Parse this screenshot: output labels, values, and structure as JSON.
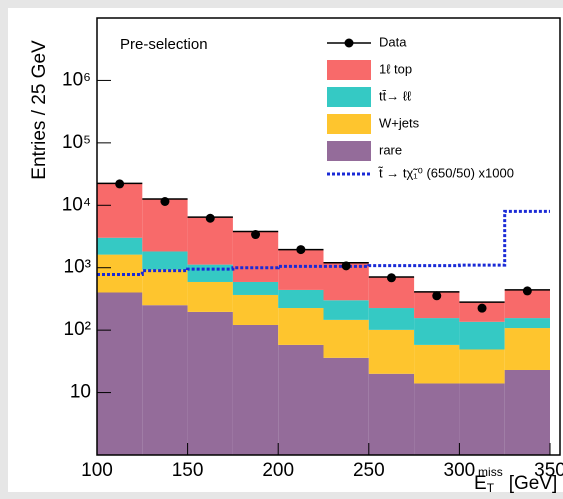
{
  "chart_data": {
    "type": "stacked_histogram",
    "annotation": "Pre-selection",
    "y_label": "Entries / 25 GeV",
    "x_label_parts": [
      "E",
      "T",
      "miss",
      "[GeV]"
    ],
    "bins": [
      100,
      125,
      150,
      175,
      200,
      225,
      250,
      275,
      300,
      325,
      350
    ],
    "series": [
      {
        "name": "1ℓ top",
        "color": "#f86a6a",
        "values": [
          19380,
          10780,
          5330,
          3210,
          1510,
          900,
          485,
          255,
          145,
          285
        ]
      },
      {
        "name": "tt̄→ ℓℓ",
        "color": "#35c9c4",
        "values": [
          1400,
          890,
          530,
          225,
          215,
          155,
          125,
          98,
          87,
          48
        ]
      },
      {
        "name": "W+jets",
        "color": "#fec52e",
        "values": [
          1220,
          680,
          395,
          245,
          168,
          110,
          81,
          44,
          35,
          85
        ]
      },
      {
        "name": "rare",
        "color": "#946c9a",
        "values": [
          400,
          250,
          195,
          120,
          57,
          35,
          19,
          13,
          13,
          22
        ]
      }
    ],
    "data_points": {
      "name": "Data",
      "color": "#000000",
      "values": [
        22000,
        11500,
        6200,
        3400,
        1950,
        1070,
        690,
        355,
        225,
        425
      ]
    },
    "signal": {
      "name": "t̃ → tχ̃₁⁰ (650/50) x1000",
      "color": "#1a2ad6",
      "values": [
        780,
        900,
        950,
        1000,
        1050,
        1050,
        1080,
        1080,
        1100,
        8000
      ]
    },
    "xlim": [
      100,
      350
    ],
    "xticks": [
      100,
      150,
      200,
      250,
      300,
      350
    ],
    "ylim": [
      1,
      10000000
    ],
    "yticks": [
      {
        "value": 10,
        "label": "10"
      },
      {
        "value": 100,
        "label": "10²"
      },
      {
        "value": 1000,
        "label": "10³"
      },
      {
        "value": 10000,
        "label": "10⁴"
      },
      {
        "value": 100000,
        "label": "10⁵"
      },
      {
        "value": 1000000,
        "label": "10⁶"
      }
    ],
    "log_y": true
  }
}
